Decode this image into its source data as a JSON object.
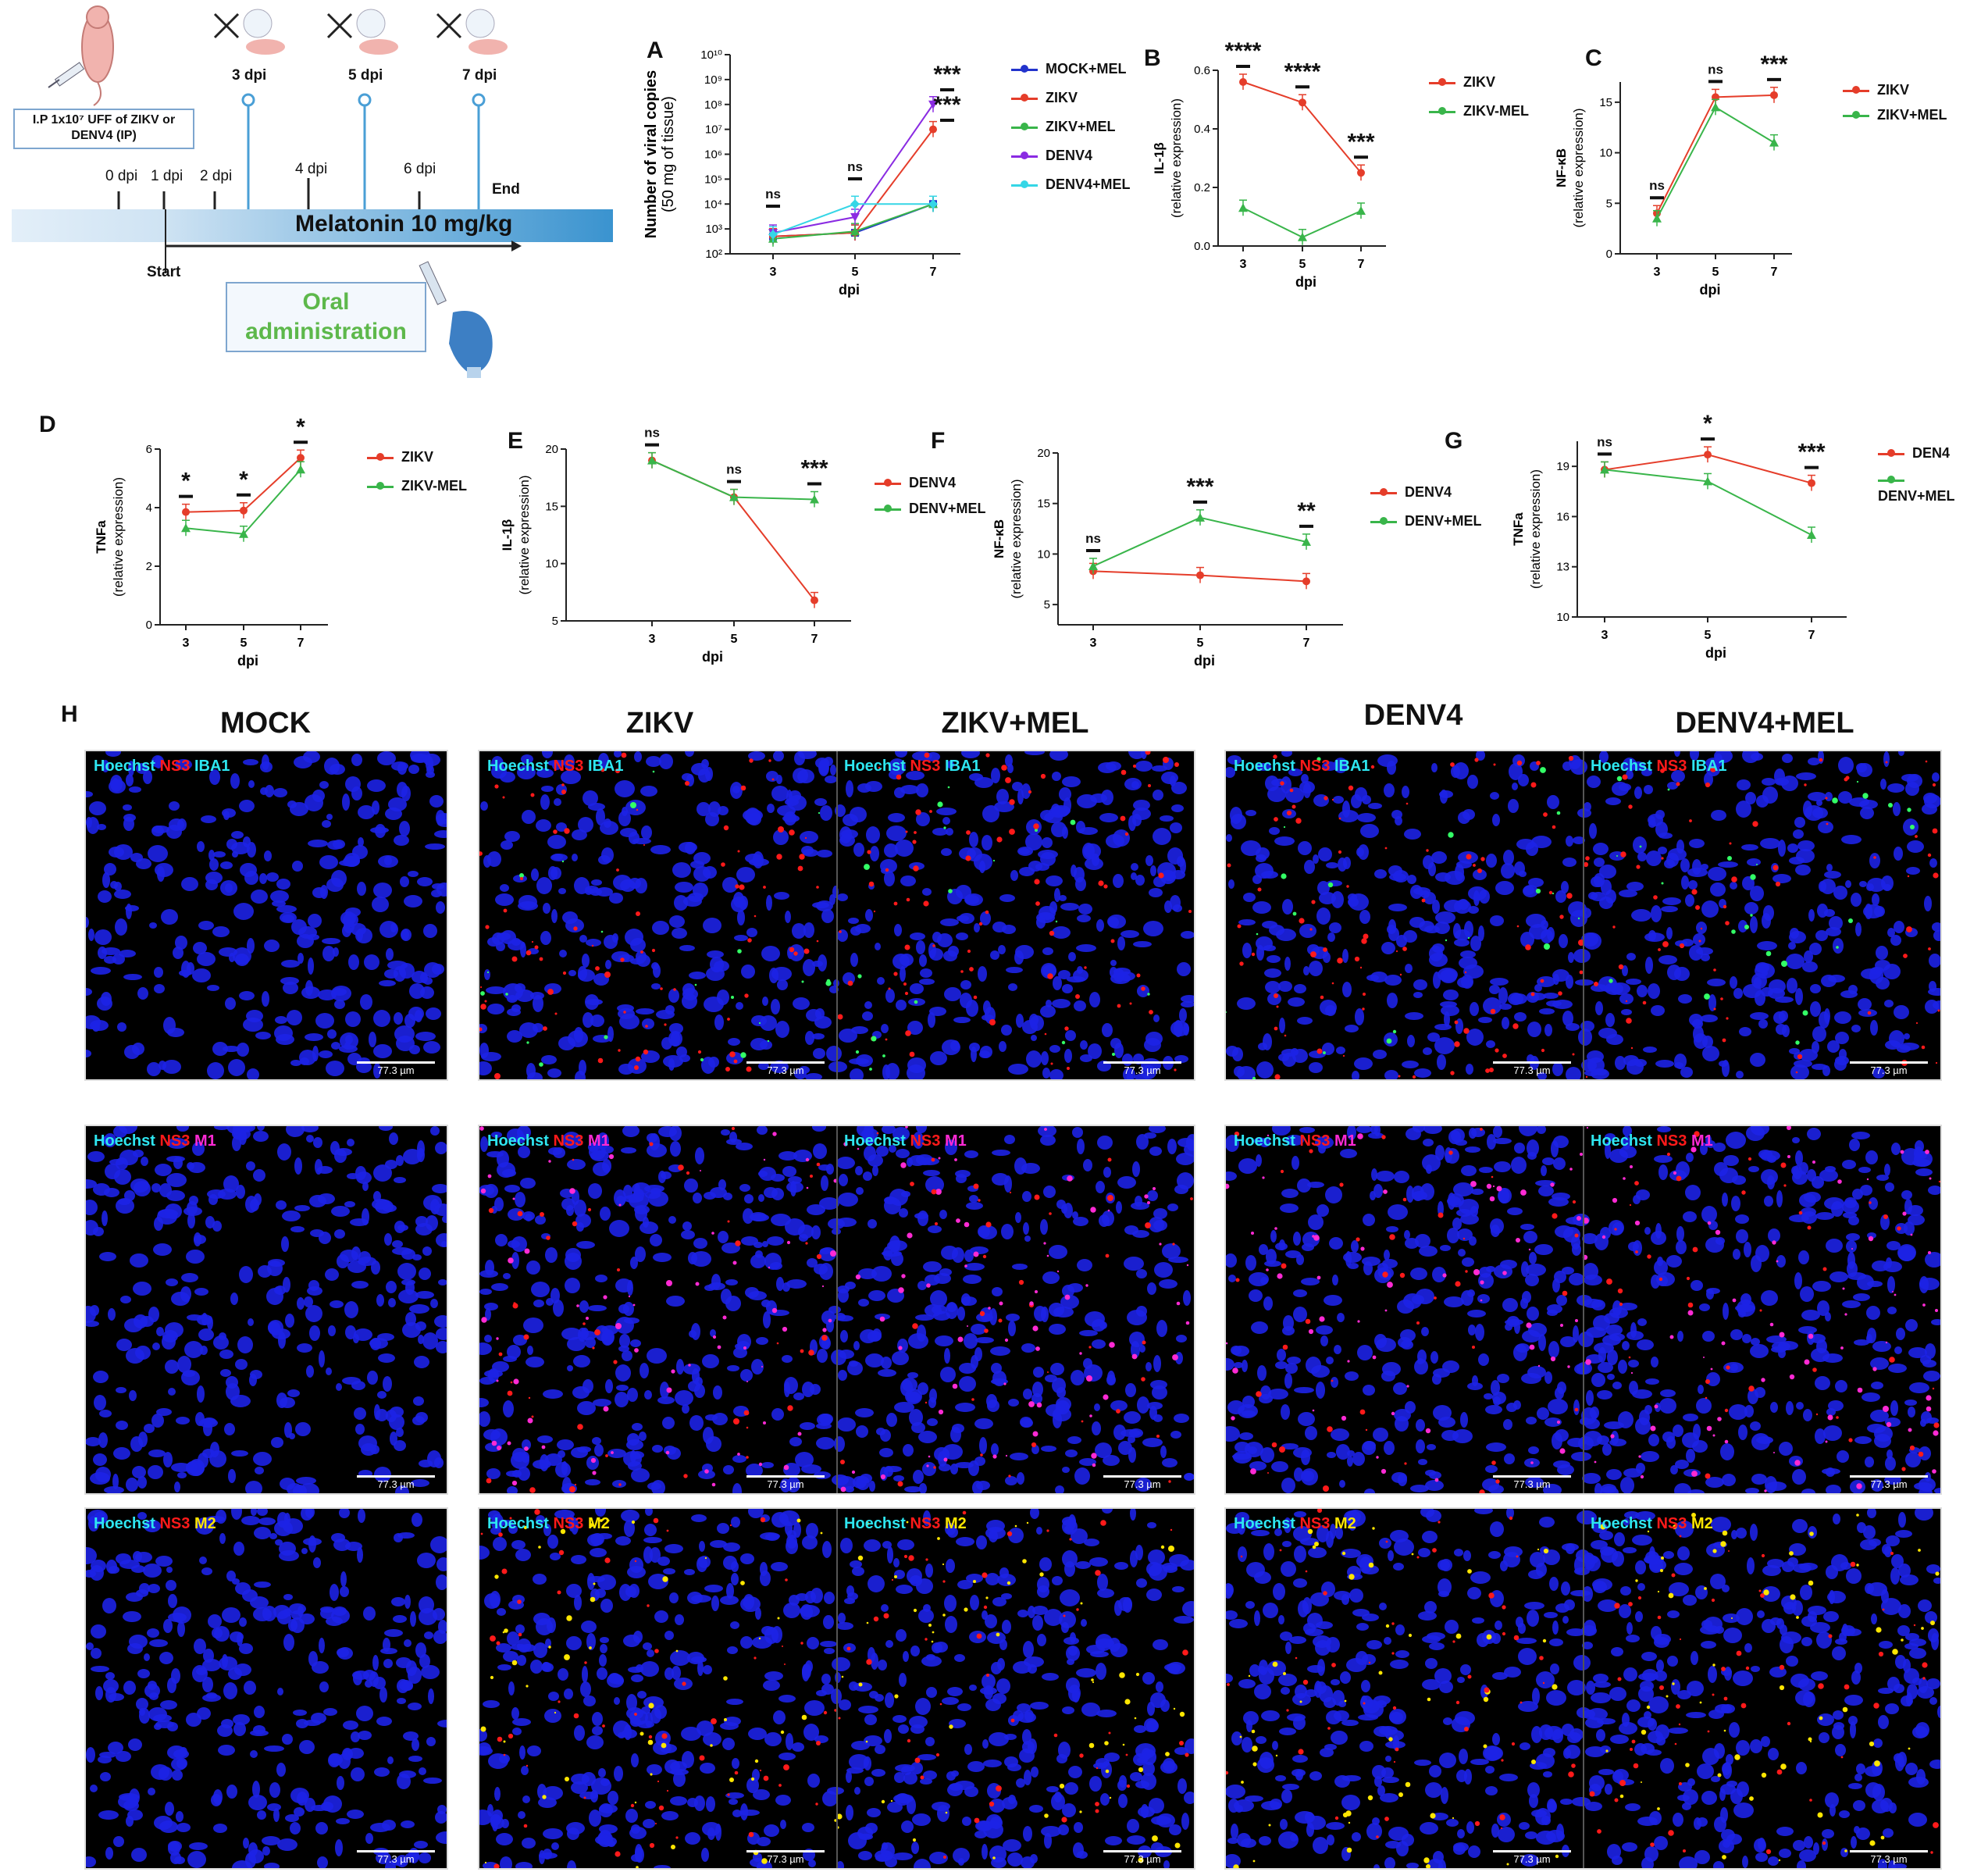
{
  "timeline": {
    "injection_box": "I.P 1x10⁷ UFF of ZIKV or DENV4 (IP)",
    "days_top": [
      "3 dpi",
      "5 dpi",
      "7 dpi"
    ],
    "ticks": [
      "0 dpi",
      "1 dpi",
      "2 dpi",
      "4 dpi",
      "6 dpi",
      "End"
    ],
    "bar_label": "Melatonin 10 mg/kg",
    "start_label": "Start",
    "oral_box": "Oral administration",
    "colors": {
      "bar_dark": "#3a93cf",
      "bar_light": "#dcebf7",
      "oral_text": "#5db84b",
      "box_border": "#7ea6cf"
    }
  },
  "legends": {
    "A": [
      "MOCK+MEL",
      "ZIKV",
      "ZIKV+MEL",
      "DENV4",
      "DENV4+MEL"
    ],
    "B": [
      "ZIKV",
      "ZIKV-MEL"
    ],
    "C": [
      "ZIKV",
      "ZIKV+MEL"
    ],
    "D": [
      "ZIKV",
      "ZIKV-MEL"
    ],
    "E": [
      "DENV4",
      "DENV+MEL"
    ],
    "F": [
      "DENV4",
      "DENV+MEL"
    ],
    "G": [
      "DEN4",
      "DENV+MEL"
    ]
  },
  "chart_data": [
    {
      "panel": "A",
      "type": "line",
      "xlabel": "dpi",
      "ylabel": "Number of viral copies (50 mg of tissue)",
      "x": [
        3,
        5,
        7
      ],
      "yscale": "log",
      "ylim": [
        100,
        10000000000
      ],
      "yticks": [
        "10²",
        "10³",
        "10⁴",
        "10⁵",
        "10⁶",
        "10⁷",
        "10⁸",
        "10⁹",
        "10¹⁰"
      ],
      "series": [
        {
          "name": "MOCK+MEL",
          "color": "#2233cc",
          "values": [
            500,
            700,
            10000
          ]
        },
        {
          "name": "ZIKV",
          "color": "#e53d2a",
          "values": [
            500,
            700,
            10000000
          ]
        },
        {
          "name": "ZIKV+MEL",
          "color": "#39b54a",
          "values": [
            400,
            800,
            10000
          ]
        },
        {
          "name": "DENV4",
          "color": "#8a2be2",
          "values": [
            700,
            3000,
            100000000
          ]
        },
        {
          "name": "DENV4+MEL",
          "color": "#35d6e6",
          "values": [
            600,
            10000,
            10000
          ]
        }
      ],
      "annotations": [
        "ns",
        "ns",
        "***",
        "***"
      ]
    },
    {
      "panel": "B",
      "type": "line",
      "xlabel": "dpi",
      "ylabel": "IL-1β (relative expression)",
      "x": [
        3,
        5,
        7
      ],
      "ylim": [
        0,
        0.6
      ],
      "yticks": [
        "0.0",
        "0.2",
        "0.4",
        "0.6"
      ],
      "series": [
        {
          "name": "ZIKV",
          "color": "#e53d2a",
          "values": [
            0.56,
            0.49,
            0.25
          ]
        },
        {
          "name": "ZIKV-MEL",
          "color": "#39b54a",
          "values": [
            0.13,
            0.03,
            0.12
          ]
        }
      ],
      "annotations": [
        "****",
        "****",
        "***"
      ]
    },
    {
      "panel": "C",
      "type": "line",
      "xlabel": "dpi",
      "ylabel": "NF-κB (relative expression)",
      "x": [
        3,
        5,
        7
      ],
      "ylim": [
        0,
        17
      ],
      "yticks": [
        "0",
        "5",
        "10",
        "15"
      ],
      "series": [
        {
          "name": "ZIKV",
          "color": "#e53d2a",
          "values": [
            4,
            15.5,
            15.7
          ]
        },
        {
          "name": "ZIKV+MEL",
          "color": "#39b54a",
          "values": [
            3.5,
            14.5,
            11
          ]
        }
      ],
      "annotations": [
        "ns",
        "ns",
        "***"
      ]
    },
    {
      "panel": "D",
      "type": "line",
      "xlabel": "dpi",
      "ylabel": "TNFa (relative expression)",
      "x": [
        3,
        5,
        7
      ],
      "ylim": [
        0,
        6
      ],
      "yticks": [
        "0",
        "2",
        "4",
        "6"
      ],
      "series": [
        {
          "name": "ZIKV",
          "color": "#e53d2a",
          "values": [
            3.85,
            3.9,
            5.7
          ]
        },
        {
          "name": "ZIKV-MEL",
          "color": "#39b54a",
          "values": [
            3.3,
            3.1,
            5.3
          ]
        }
      ],
      "annotations": [
        "*",
        "*",
        "*"
      ]
    },
    {
      "panel": "E",
      "type": "line",
      "xlabel": "dpi",
      "ylabel": "IL-1β (relative expression)",
      "x": [
        3,
        5,
        7
      ],
      "ylim": [
        5,
        20
      ],
      "yticks": [
        "5",
        "10",
        "15",
        "20"
      ],
      "series": [
        {
          "name": "DENV4",
          "color": "#e53d2a",
          "values": [
            19,
            15.8,
            6.8
          ]
        },
        {
          "name": "DENV+MEL",
          "color": "#39b54a",
          "values": [
            19,
            15.8,
            15.6
          ]
        }
      ],
      "annotations": [
        "ns",
        "ns",
        "***"
      ]
    },
    {
      "panel": "F",
      "type": "line",
      "xlabel": "dpi",
      "ylabel": "NF-κB (relative expression)",
      "x": [
        3,
        5,
        7
      ],
      "ylim": [
        3,
        20
      ],
      "yticks": [
        "5",
        "10",
        "15",
        "20"
      ],
      "series": [
        {
          "name": "DENV4",
          "color": "#e53d2a",
          "values": [
            8.3,
            7.9,
            7.3
          ]
        },
        {
          "name": "DENV+MEL",
          "color": "#39b54a",
          "values": [
            8.8,
            13.6,
            11.2
          ]
        }
      ],
      "annotations": [
        "ns",
        "***",
        "**"
      ]
    },
    {
      "panel": "G",
      "type": "line",
      "xlabel": "dpi",
      "ylabel": "TNFa (relative expression)",
      "x": [
        3,
        5,
        7
      ],
      "ylim": [
        10,
        20.5
      ],
      "yticks": [
        "10",
        "13",
        "16",
        "19"
      ],
      "series": [
        {
          "name": "DEN4",
          "color": "#e53d2a",
          "values": [
            18.8,
            19.7,
            18
          ]
        },
        {
          "name": "DENV+MEL",
          "color": "#39b54a",
          "values": [
            18.8,
            18.1,
            14.9
          ]
        }
      ],
      "annotations": [
        "ns",
        "*",
        "***"
      ]
    }
  ],
  "micro": {
    "titles": [
      "MOCK",
      "ZIKV",
      "ZIKV+MEL",
      "DENV4",
      "DENV4+MEL"
    ],
    "stain_hoechst": "Hoechst",
    "stain_ns3": "NS3",
    "stain_iba1": "IBA1",
    "stain_m1": "M1",
    "stain_m2": "M2",
    "scale": "77.3 µm",
    "colors": {
      "hoechst": "#2ee6f0",
      "ns3": "#ff1a1a",
      "iba1": "#2ee6f0",
      "m1": "#ff2ad4",
      "m2": "#ffe600"
    }
  }
}
